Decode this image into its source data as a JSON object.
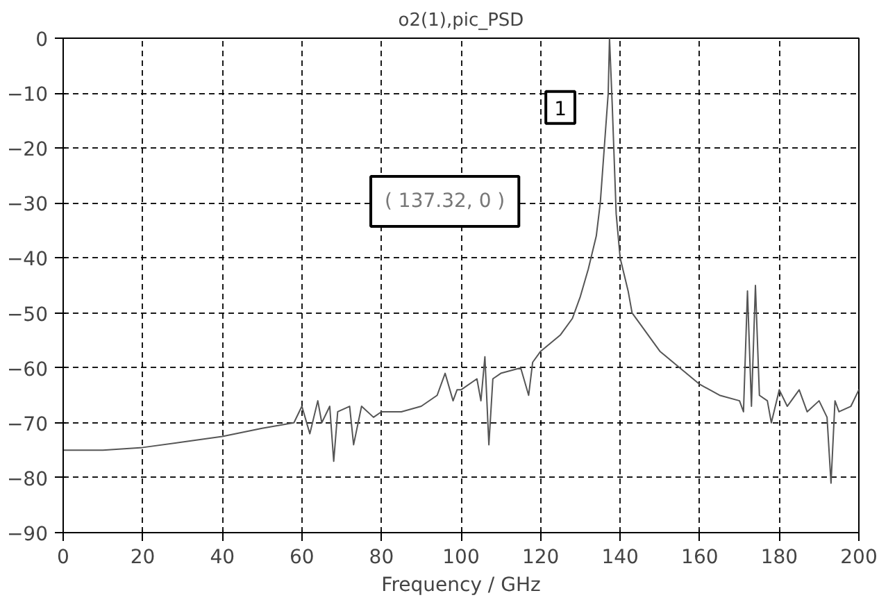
{
  "chart_data": {
    "type": "line",
    "title": "o2(1),pic_PSD",
    "xlabel": "Frequency / GHz",
    "x": [
      0,
      10,
      20,
      30,
      40,
      50,
      58,
      60,
      62,
      64,
      65,
      67,
      68,
      69,
      72,
      73,
      75,
      78,
      80,
      85,
      90,
      94,
      96,
      98,
      99,
      100,
      104,
      105,
      106,
      107,
      108,
      110,
      115,
      117,
      118,
      120,
      125,
      128,
      130,
      132,
      134,
      135,
      136,
      137,
      137.32,
      138,
      139,
      140,
      141,
      142,
      143,
      145,
      148,
      150,
      155,
      160,
      165,
      170,
      171,
      172,
      173,
      174,
      175,
      177,
      178,
      180,
      182,
      185,
      187,
      190,
      192,
      193,
      194,
      195,
      198,
      200
    ],
    "series": [
      {
        "color": "#555555",
        "values": [
          -75,
          -75,
          -74.5,
          -73.5,
          -72.5,
          -71,
          -70,
          -67,
          -72,
          -66,
          -70,
          -67,
          -77,
          -68,
          -67,
          -74,
          -67,
          -69,
          -68,
          -68,
          -67,
          -65,
          -61,
          -66,
          -64,
          -64,
          -62,
          -66,
          -58,
          -74,
          -62,
          -61,
          -60,
          -65,
          -59,
          -57,
          -54,
          -51,
          -47,
          -42,
          -36,
          -30,
          -20,
          -10,
          0,
          -12,
          -32,
          -40,
          -43,
          -46,
          -50,
          -52,
          -55,
          -57,
          -60,
          -63,
          -65,
          -66,
          -68,
          -46,
          -67,
          -45,
          -65,
          -66,
          -70,
          -64,
          -67,
          -64,
          -68,
          -66,
          -69,
          -81,
          -66,
          -68,
          -67,
          -64
        ]
      }
    ],
    "xlim": [
      0,
      200
    ],
    "ylim": [
      -90,
      0
    ],
    "xticks": [
      0,
      20,
      40,
      60,
      80,
      100,
      120,
      140,
      160,
      180,
      200
    ],
    "yticks": [
      0,
      -10,
      -20,
      -30,
      -40,
      -50,
      -60,
      -70,
      -80,
      -90
    ],
    "grid": true,
    "line_style": "solid",
    "annotations": [
      "1",
      "( 137.32, 0 )"
    ]
  }
}
